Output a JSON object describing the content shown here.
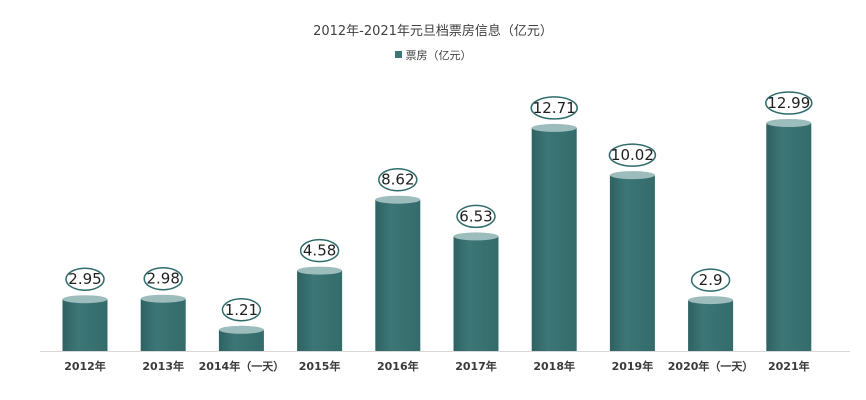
{
  "chart_data": {
    "type": "bar",
    "title": "2012年-2021年元旦档票房信息（亿元）",
    "categories": [
      "2012年",
      "2013年",
      "2014年（一天）",
      "2015年",
      "2016年",
      "2017年",
      "2018年",
      "2019年",
      "2020年（一天）",
      "2021年"
    ],
    "series": [
      {
        "name": "票房（亿元）",
        "values": [
          2.95,
          2.98,
          1.21,
          4.58,
          8.62,
          6.53,
          12.71,
          10.02,
          2.9,
          12.99
        ],
        "labels": [
          "2.95",
          "2.98",
          "1.21",
          "4.58",
          "8.62",
          "6.53",
          "12.71",
          "10.02",
          "2.9",
          "12.99"
        ]
      }
    ],
    "ylim": [
      0,
      14
    ],
    "grid": false,
    "legend_position": "top",
    "colors": {
      "bar": "#3d7676",
      "bar_top": "#9dbcbc",
      "label_ring": "#2f6b6b"
    }
  }
}
